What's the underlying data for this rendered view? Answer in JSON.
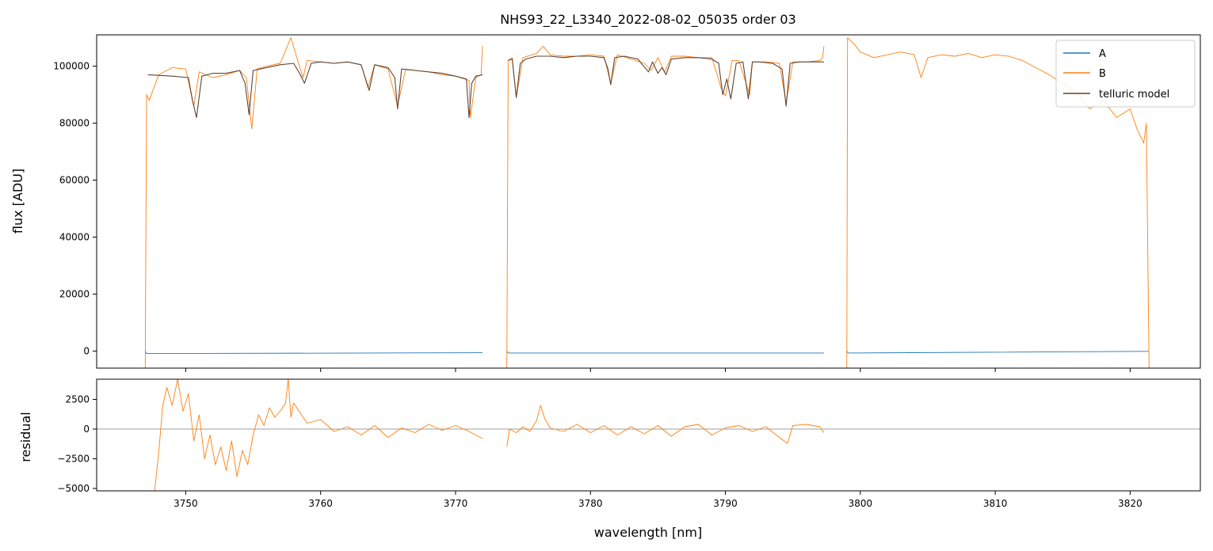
{
  "chart_data": [
    {
      "type": "line",
      "panel": "main",
      "title": "NHS93_22_L3340_2022-08-02_05035  order 03",
      "xlabel": "",
      "ylabel": "flux [ADU]",
      "xlim": [
        3743.4,
        3825.2
      ],
      "ylim": [
        -6000,
        111000
      ],
      "yticks": [
        0,
        20000,
        40000,
        60000,
        80000,
        100000
      ],
      "ytick_labels": [
        "0",
        "20000",
        "40000",
        "60000",
        "80000",
        "100000"
      ],
      "xticks": [
        3750,
        3760,
        3770,
        3780,
        3790,
        3800,
        3810,
        3820
      ],
      "xtick_labels_visible": false,
      "legend_position": "top-right",
      "series": [
        {
          "name": "A",
          "color": "#1f77b4",
          "segments": [
            {
              "x": [
                3747.0,
                3747.1,
                3772.0
              ],
              "y": [
                0,
                -900,
                -600
              ]
            },
            {
              "x": [
                3773.8,
                3773.9,
                3797.3
              ],
              "y": [
                0,
                -700,
                -700
              ]
            },
            {
              "x": [
                3799.0,
                3799.1,
                3821.4
              ],
              "y": [
                0,
                -700,
                -100
              ]
            }
          ]
        },
        {
          "name": "B",
          "color": "#ff7f0e",
          "segments": [
            {
              "x": [
                3747.0,
                3747.1,
                3747.3,
                3748.0,
                3749.0,
                3750.0,
                3750.6,
                3751.0,
                3752.0,
                3753.0,
                3754.0,
                3754.5,
                3754.9,
                3755.3,
                3756.0,
                3757.0,
                3757.8,
                3758.3,
                3758.7,
                3759.0,
                3760.0,
                3761.0,
                3762.0,
                3763.0,
                3763.5,
                3764.0,
                3765.0,
                3765.7,
                3766.3,
                3767.0,
                3768.0,
                3769.0,
                3770.0,
                3771.0,
                3771.1,
                3771.5,
                3771.9,
                3772.0
              ],
              "y": [
                -6000,
                90000,
                88000,
                97000,
                99500,
                99000,
                86000,
                98000,
                96000,
                97000,
                98500,
                96000,
                78000,
                99000,
                100000,
                101000,
                110000,
                102000,
                96000,
                102000,
                101500,
                101000,
                101500,
                100500,
                92500,
                100500,
                99000,
                86000,
                99000,
                98500,
                98000,
                97000,
                96500,
                95000,
                82000,
                96000,
                97000,
                107000
              ]
            },
            {
              "x": [
                3773.8,
                3773.9,
                3774.2,
                3774.5,
                3775.0,
                3776.0,
                3776.5,
                3777.0,
                3778.0,
                3779.0,
                3780.0,
                3781.0,
                3781.5,
                3782.0,
                3783.0,
                3784.0,
                3784.5,
                3785.0,
                3785.5,
                3786.0,
                3787.0,
                3788.0,
                3789.0,
                3789.7,
                3790.0,
                3790.5,
                3791.0,
                3791.8,
                3792.0,
                3793.0,
                3794.0,
                3794.5,
                3795.0,
                3796.0,
                3797.0,
                3797.2,
                3797.3
              ],
              "y": [
                -6000,
                102000,
                103000,
                89000,
                103000,
                104500,
                107000,
                104000,
                103500,
                103500,
                104000,
                103500,
                94000,
                104000,
                102500,
                101000,
                98500,
                103000,
                98000,
                103500,
                103500,
                103000,
                103000,
                92000,
                89500,
                102000,
                102000,
                90000,
                101500,
                101500,
                101000,
                87000,
                101500,
                101500,
                102000,
                103000,
                107000
              ]
            },
            {
              "x": [
                3799.0,
                3799.05,
                3799.5,
                3800.0,
                3801.0,
                3802.0,
                3803.0,
                3804.0,
                3804.5,
                3805.0,
                3806.0,
                3807.0,
                3808.0,
                3809.0,
                3810.0,
                3811.0,
                3812.0,
                3813.0,
                3814.0,
                3815.0,
                3816.0,
                3817.0,
                3818.0,
                3819.0,
                3820.0,
                3820.5,
                3821.0,
                3821.2,
                3821.4
              ],
              "y": [
                -6000,
                110000,
                108000,
                105000,
                103000,
                104000,
                105000,
                104000,
                96000,
                103000,
                104000,
                103500,
                104500,
                103000,
                104000,
                103500,
                102000,
                99500,
                97000,
                94000,
                91000,
                85000,
                88000,
                82000,
                85000,
                78000,
                73000,
                80000,
                -6000
              ]
            }
          ]
        },
        {
          "name": "telluric model",
          "color": "#5c4535",
          "segments": [
            {
              "x": [
                3747.2,
                3749.0,
                3750.2,
                3750.5,
                3750.8,
                3751.2,
                3752.0,
                3753.0,
                3754.0,
                3754.4,
                3754.7,
                3755.0,
                3755.5,
                3757.0,
                3758.0,
                3758.5,
                3758.8,
                3759.3,
                3760.0,
                3761.0,
                3762.0,
                3763.0,
                3763.3,
                3763.6,
                3764.0,
                3765.0,
                3765.5,
                3765.7,
                3766.0,
                3767.0,
                3768.0,
                3769.0,
                3770.0,
                3770.8,
                3771.0,
                3771.2,
                3771.5,
                3772.0
              ],
              "y": [
                97000,
                96500,
                96000,
                88000,
                82000,
                96500,
                97500,
                97500,
                98500,
                94000,
                83000,
                98500,
                99000,
                100500,
                101000,
                97000,
                94000,
                101000,
                101500,
                101000,
                101500,
                100500,
                96000,
                91500,
                100500,
                99500,
                96000,
                85000,
                99000,
                98500,
                98000,
                97500,
                96500,
                95500,
                82000,
                94000,
                96500,
                97000
              ]
            },
            {
              "x": [
                3773.9,
                3774.2,
                3774.5,
                3774.8,
                3775.2,
                3776.0,
                3777.0,
                3778.0,
                3779.0,
                3780.0,
                3781.0,
                3781.3,
                3781.5,
                3781.8,
                3782.5,
                3783.5,
                3784.3,
                3784.6,
                3785.0,
                3785.3,
                3785.6,
                3786.0,
                3787.0,
                3788.0,
                3789.0,
                3789.5,
                3789.8,
                3790.1,
                3790.4,
                3790.8,
                3791.3,
                3791.7,
                3792.0,
                3792.5,
                3793.5,
                3794.2,
                3794.5,
                3794.8,
                3795.5,
                3796.5,
                3797.3
              ],
              "y": [
                102000,
                102500,
                89000,
                101000,
                102500,
                103500,
                103500,
                103000,
                103500,
                103500,
                103000,
                99000,
                93500,
                103000,
                103500,
                102500,
                98000,
                101500,
                97500,
                99500,
                97000,
                102500,
                103000,
                103000,
                102500,
                101000,
                90000,
                95500,
                88500,
                101000,
                101500,
                88500,
                101500,
                101500,
                101000,
                99000,
                86000,
                101000,
                101500,
                101500,
                101500
              ]
            }
          ]
        }
      ]
    },
    {
      "type": "line",
      "panel": "residual",
      "xlabel": "wavelength [nm]",
      "ylabel": "residual",
      "xlim": [
        3743.4,
        3825.2
      ],
      "ylim": [
        -5200,
        4200
      ],
      "yticks": [
        -5000,
        -2500,
        0,
        2500
      ],
      "ytick_labels": [
        "−5000",
        "−2500",
        "0",
        "2500"
      ],
      "xticks": [
        3750,
        3760,
        3770,
        3780,
        3790,
        3800,
        3810,
        3820
      ],
      "xtick_labels": [
        "3750",
        "3760",
        "3770",
        "3780",
        "3790",
        "3800",
        "3810",
        "3820"
      ],
      "zero_line_color": "#7f7f7f",
      "series": [
        {
          "color": "#ff7f0e",
          "segments": [
            {
              "x": [
                3747.7,
                3748.0,
                3748.3,
                3748.6,
                3749.0,
                3749.4,
                3749.8,
                3750.2,
                3750.6,
                3751.0,
                3751.4,
                3751.8,
                3752.2,
                3752.6,
                3753.0,
                3753.4,
                3753.8,
                3754.2,
                3754.6,
                3755.0,
                3755.4,
                3755.8,
                3756.2,
                3756.6,
                3757.0,
                3757.4,
                3757.6,
                3757.8,
                3758.0,
                3758.4,
                3759.0,
                3760.0,
                3761.0,
                3762.0,
                3763.0,
                3764.0,
                3765.0,
                3766.0,
                3767.0,
                3768.0,
                3769.0,
                3770.0,
                3771.0,
                3772.0
              ],
              "y": [
                -5200,
                -2000,
                2000,
                3500,
                2000,
                4200,
                1500,
                3000,
                -1000,
                1200,
                -2500,
                -500,
                -3000,
                -1500,
                -3500,
                -1000,
                -4000,
                -1800,
                -3000,
                -500,
                1200,
                300,
                1800,
                1000,
                1500,
                2200,
                4200,
                1000,
                2200,
                1500,
                500,
                800,
                -200,
                200,
                -500,
                300,
                -700,
                100,
                -300,
                400,
                -100,
                300,
                -200,
                -800
              ]
            },
            {
              "x": [
                3773.8,
                3774.0,
                3774.5,
                3775.0,
                3775.5,
                3776.0,
                3776.3,
                3776.6,
                3777.0,
                3778.0,
                3779.0,
                3780.0,
                3781.0,
                3782.0,
                3783.0,
                3784.0,
                3785.0,
                3786.0,
                3787.0,
                3788.0,
                3789.0,
                3790.0,
                3791.0,
                3792.0,
                3793.0,
                3794.0,
                3794.6,
                3795.0,
                3796.0,
                3797.0,
                3797.3
              ],
              "y": [
                -1500,
                0,
                -300,
                200,
                -200,
                700,
                2000,
                900,
                100,
                -200,
                400,
                -300,
                300,
                -500,
                200,
                -400,
                300,
                -600,
                200,
                400,
                -500,
                100,
                300,
                -200,
                200,
                -700,
                -1200,
                300,
                400,
                200,
                -300
              ]
            }
          ]
        }
      ]
    }
  ]
}
